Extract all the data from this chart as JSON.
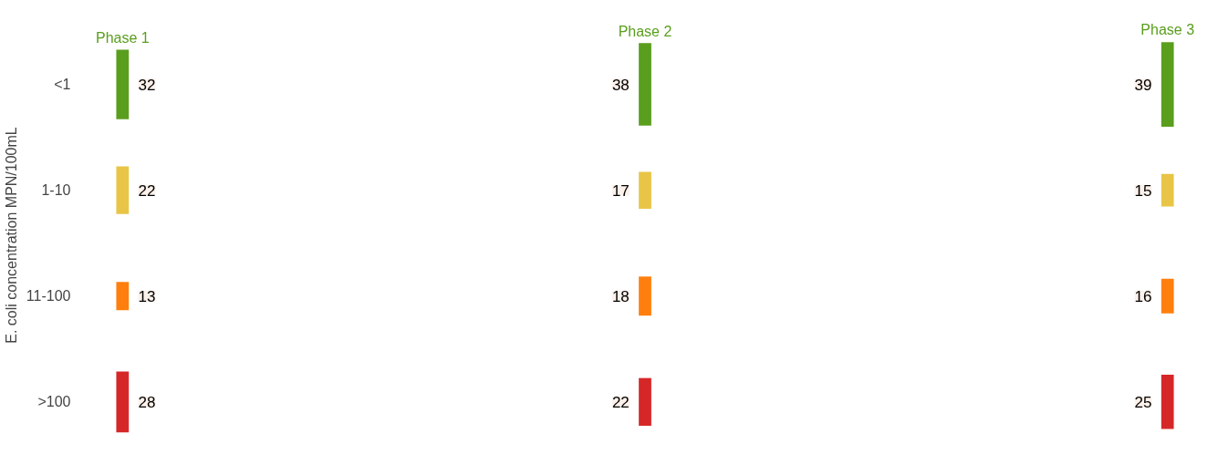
{
  "chart_data": {
    "type": "other",
    "ylabel": "E. coli concentration MPN/100mL",
    "categories": [
      "<1",
      "1-10",
      "11-100",
      ">100"
    ],
    "colors": [
      "#5a9e1e",
      "#e8c547",
      "#ff7f0e",
      "#d62728"
    ],
    "data_labels": true,
    "series": [
      {
        "name": "Phase 1",
        "values": [
          32,
          22,
          13,
          28
        ]
      },
      {
        "name": "Phase 2",
        "values": [
          38,
          17,
          18,
          22
        ]
      },
      {
        "name": "Phase 3",
        "values": [
          39,
          15,
          16,
          25
        ]
      }
    ]
  }
}
